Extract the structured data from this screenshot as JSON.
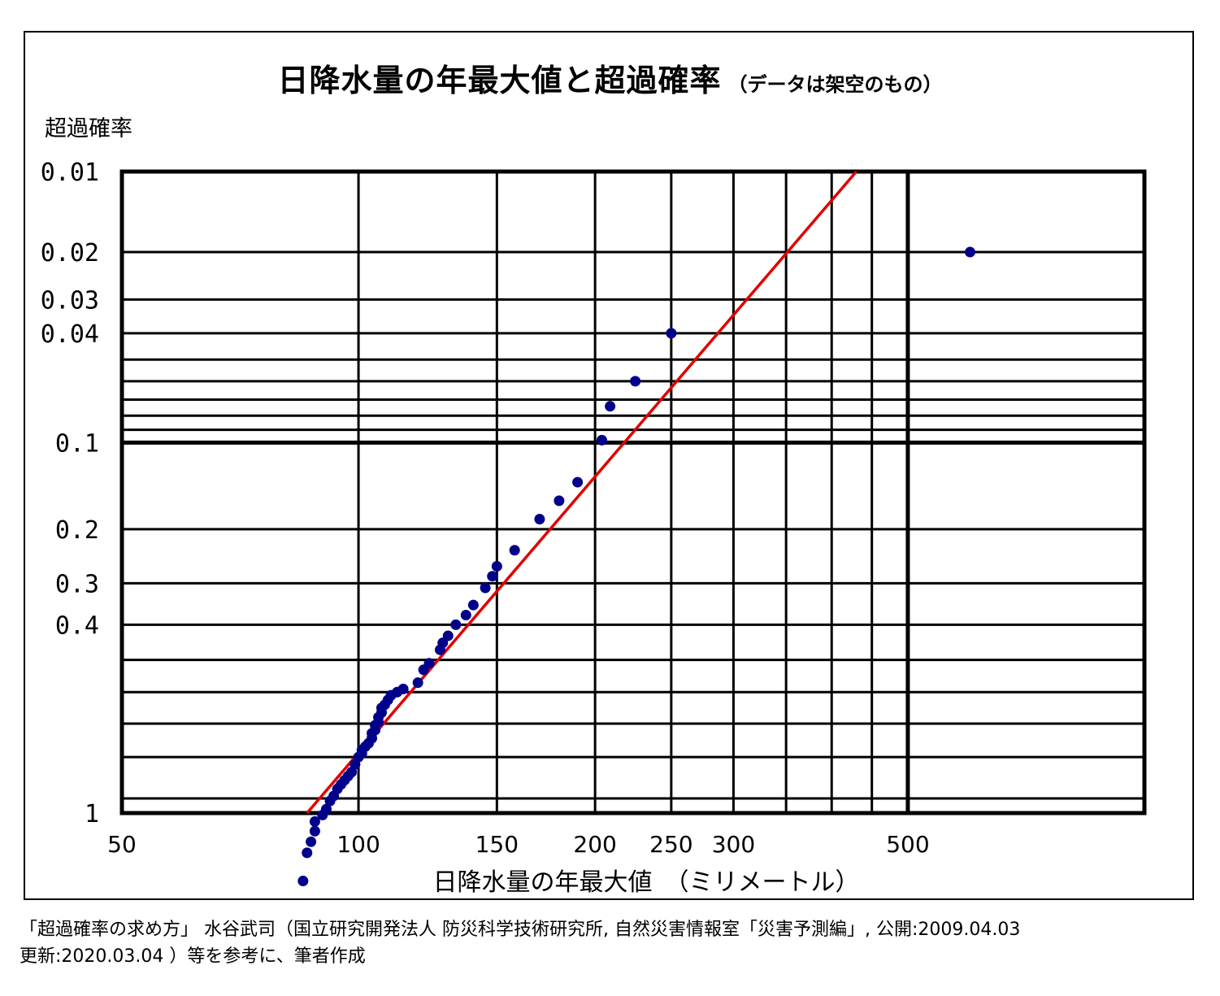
{
  "header": {
    "title": "日降水量の年最大値と超過確率",
    "subtitle": "（データは架空のもの）"
  },
  "axes": {
    "ylabel": "超過確率",
    "xlabel": "日降水量の年最大値　（ミリメートル）"
  },
  "source": {
    "line1": "「超過確率の求め方」 水谷武司（国立研究開発法人 防災科学技術研究所, 自然災害情報室「災害予測編」, 公開:2009.04.03",
    "line2": "更新:2020.03.04 ）等を参考に、筆者作成"
  },
  "colors": {
    "points": "#00008b",
    "fit_line": "#e00000",
    "grid": "#000000"
  },
  "chart_data": {
    "type": "scatter",
    "title": "日降水量の年最大値と超過確率",
    "xlabel": "日降水量の年最大値　（ミリメートル）",
    "ylabel": "超過確率",
    "x_scale": "log",
    "y_scale": "probability (Gumbel extreme value)",
    "xlim": [
      50,
      1000
    ],
    "ylim": [
      1,
      0.01
    ],
    "x_ticks": [
      50,
      100,
      150,
      200,
      250,
      300,
      500
    ],
    "x_grid": [
      100,
      150,
      200,
      250,
      300,
      350,
      400,
      450,
      500
    ],
    "y_ticks": [
      "0.01",
      "0.02",
      "0.03",
      "0.04",
      "0.1",
      "0.2",
      "0.3",
      "0.4",
      "1"
    ],
    "y_tick_values": [
      0.01,
      0.02,
      0.03,
      0.04,
      0.1,
      0.2,
      0.3,
      0.4,
      1
    ],
    "y_grid": [
      0.02,
      0.03,
      0.04,
      0.05,
      0.06,
      0.07,
      0.08,
      0.09,
      0.1,
      0.2,
      0.3,
      0.4,
      0.5,
      0.6,
      0.7,
      0.8,
      0.9
    ],
    "grid": true,
    "series": [
      {
        "type": "scatter",
        "x": [
          85,
          86,
          87,
          88,
          88,
          90,
          91,
          92,
          93,
          94,
          95,
          96,
          97,
          98,
          99,
          100,
          101,
          101,
          102,
          103,
          104,
          104,
          105,
          105,
          106,
          106,
          107,
          107,
          108,
          109,
          110,
          112,
          114,
          119,
          121,
          123,
          127,
          128,
          130,
          133,
          137,
          140,
          145,
          148,
          150,
          158,
          170,
          180,
          190,
          204,
          209,
          225,
          250,
          600
        ],
        "y": [
          0.991,
          0.975,
          0.965,
          0.953,
          0.94,
          0.93,
          0.92,
          0.905,
          0.895,
          0.88,
          0.87,
          0.86,
          0.85,
          0.84,
          0.82,
          0.8,
          0.79,
          0.78,
          0.77,
          0.76,
          0.745,
          0.73,
          0.72,
          0.705,
          0.695,
          0.68,
          0.665,
          0.65,
          0.64,
          0.625,
          0.61,
          0.6,
          0.59,
          0.57,
          0.53,
          0.51,
          0.47,
          0.45,
          0.43,
          0.4,
          0.375,
          0.35,
          0.31,
          0.285,
          0.265,
          0.235,
          0.185,
          0.16,
          0.138,
          0.098,
          0.074,
          0.06,
          0.04,
          0.02
        ]
      },
      {
        "type": "line",
        "x": [
          86,
          430
        ],
        "y": [
          1,
          0.01
        ]
      }
    ]
  }
}
